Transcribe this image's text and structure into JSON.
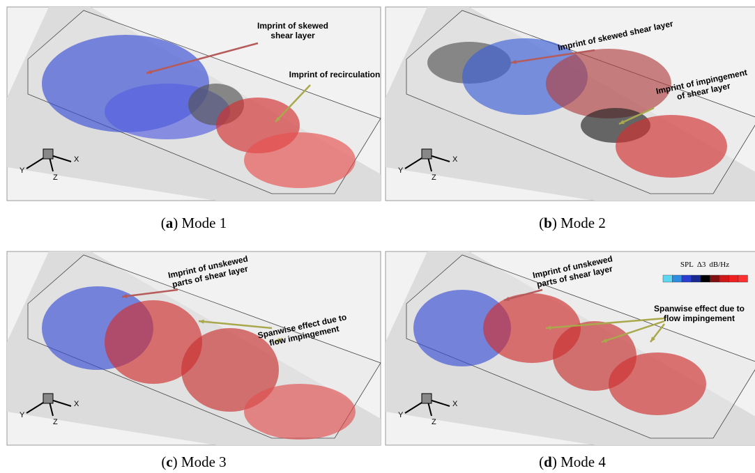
{
  "panels": [
    {
      "caption": {
        "prefix": "(",
        "label": "a",
        "suffix": ") Mode 1"
      },
      "axes": {
        "x": "X",
        "y": "Y",
        "z": "Z"
      },
      "annotations": [
        {
          "lines": [
            "Imprint of skewed",
            "shear layer"
          ]
        },
        {
          "lines": [
            "Imprint of recirculation"
          ]
        }
      ]
    },
    {
      "caption": {
        "prefix": "(",
        "label": "b",
        "suffix": ") Mode 2"
      },
      "axes": {
        "x": "X",
        "y": "Y",
        "z": "Z"
      },
      "annotations": [
        {
          "lines": [
            "Imprint of skewed shear layer"
          ]
        },
        {
          "lines": [
            "Imprint of impingement",
            "of shear layer"
          ]
        }
      ]
    },
    {
      "caption": {
        "prefix": "(",
        "label": "c",
        "suffix": ") Mode 3"
      },
      "axes": {
        "x": "X",
        "y": "Y",
        "z": "Z"
      },
      "annotations": [
        {
          "lines": [
            "Imprint of unskewed",
            "parts of shear layer"
          ]
        },
        {
          "lines": [
            "Spanwise effect due to",
            "flow impingement"
          ]
        }
      ]
    },
    {
      "caption": {
        "prefix": "(",
        "label": "d",
        "suffix": ") Mode 4"
      },
      "axes": {
        "x": "X",
        "y": "Y",
        "z": "Z"
      },
      "annotations": [
        {
          "lines": [
            "Imprint of unskewed",
            "parts of shear layer"
          ]
        },
        {
          "lines": [
            "Spanwise effect due to",
            "flow impingement"
          ]
        }
      ],
      "colorbar": {
        "quantity": "SPL",
        "step": "Δ3",
        "unit": "dB/Hz"
      }
    }
  ]
}
